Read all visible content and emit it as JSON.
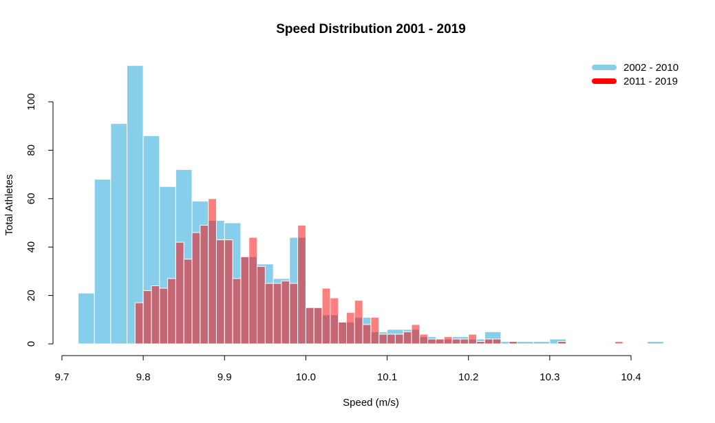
{
  "chart_data": {
    "type": "bar",
    "title": "Speed Distribution 2001 - 2019",
    "xlabel": "Speed (m/s)",
    "ylabel": "Total Athletes",
    "xlim": [
      9.7,
      10.4
    ],
    "ylim": [
      0,
      115
    ],
    "x_ticks": [
      "9.7",
      "9.8",
      "9.9",
      "10.0",
      "10.1",
      "10.2",
      "10.3",
      "10.4"
    ],
    "y_ticks": [
      "0",
      "20",
      "40",
      "60",
      "80",
      "100"
    ],
    "bin_width": 0.02,
    "grid": false,
    "legend_position": "top-right",
    "series": [
      {
        "name": "2002 - 2010",
        "color": "#87CEEB",
        "bins": [
          [
            9.72,
            21
          ],
          [
            9.74,
            68
          ],
          [
            9.76,
            91
          ],
          [
            9.78,
            115
          ],
          [
            9.8,
            86
          ],
          [
            9.82,
            65
          ],
          [
            9.84,
            72
          ],
          [
            9.86,
            59
          ],
          [
            9.88,
            51
          ],
          [
            9.9,
            50
          ],
          [
            9.92,
            36
          ],
          [
            9.94,
            33
          ],
          [
            9.96,
            27
          ],
          [
            9.98,
            44
          ],
          [
            10.0,
            15
          ],
          [
            10.02,
            12
          ],
          [
            10.04,
            9
          ],
          [
            10.06,
            11
          ],
          [
            10.08,
            5
          ],
          [
            10.1,
            6
          ],
          [
            10.12,
            6
          ],
          [
            10.14,
            3
          ],
          [
            10.16,
            2
          ],
          [
            10.18,
            3
          ],
          [
            10.2,
            2
          ],
          [
            10.22,
            5
          ],
          [
            10.24,
            1
          ],
          [
            10.26,
            1
          ],
          [
            10.28,
            1
          ],
          [
            10.3,
            2
          ],
          [
            10.42,
            1
          ]
        ]
      },
      {
        "name": "2011 - 2019",
        "color": "#FF0000",
        "bins": [
          [
            9.79,
            17
          ],
          [
            9.8,
            22
          ],
          [
            9.81,
            24
          ],
          [
            9.82,
            23
          ],
          [
            9.83,
            27
          ],
          [
            9.84,
            42
          ],
          [
            9.85,
            35
          ],
          [
            9.86,
            46
          ],
          [
            9.87,
            49
          ],
          [
            9.88,
            60
          ],
          [
            9.89,
            43
          ],
          [
            9.9,
            43
          ],
          [
            9.91,
            27
          ],
          [
            9.92,
            36
          ],
          [
            9.93,
            44
          ],
          [
            9.94,
            32
          ],
          [
            9.95,
            25
          ],
          [
            9.96,
            25
          ],
          [
            9.97,
            26
          ],
          [
            9.98,
            25
          ],
          [
            9.99,
            49
          ],
          [
            10.0,
            15
          ],
          [
            10.01,
            15
          ],
          [
            10.02,
            23
          ],
          [
            10.03,
            19
          ],
          [
            10.04,
            9
          ],
          [
            10.05,
            13
          ],
          [
            10.06,
            18
          ],
          [
            10.07,
            8
          ],
          [
            10.08,
            11
          ],
          [
            10.09,
            4
          ],
          [
            10.1,
            4
          ],
          [
            10.11,
            4
          ],
          [
            10.12,
            5
          ],
          [
            10.13,
            8
          ],
          [
            10.14,
            4
          ],
          [
            10.15,
            2
          ],
          [
            10.16,
            2
          ],
          [
            10.17,
            3
          ],
          [
            10.18,
            2
          ],
          [
            10.19,
            2
          ],
          [
            10.2,
            4
          ],
          [
            10.21,
            1
          ],
          [
            10.22,
            2
          ],
          [
            10.23,
            2
          ],
          [
            10.25,
            1
          ],
          [
            10.31,
            1
          ],
          [
            10.38,
            1
          ]
        ]
      }
    ]
  }
}
